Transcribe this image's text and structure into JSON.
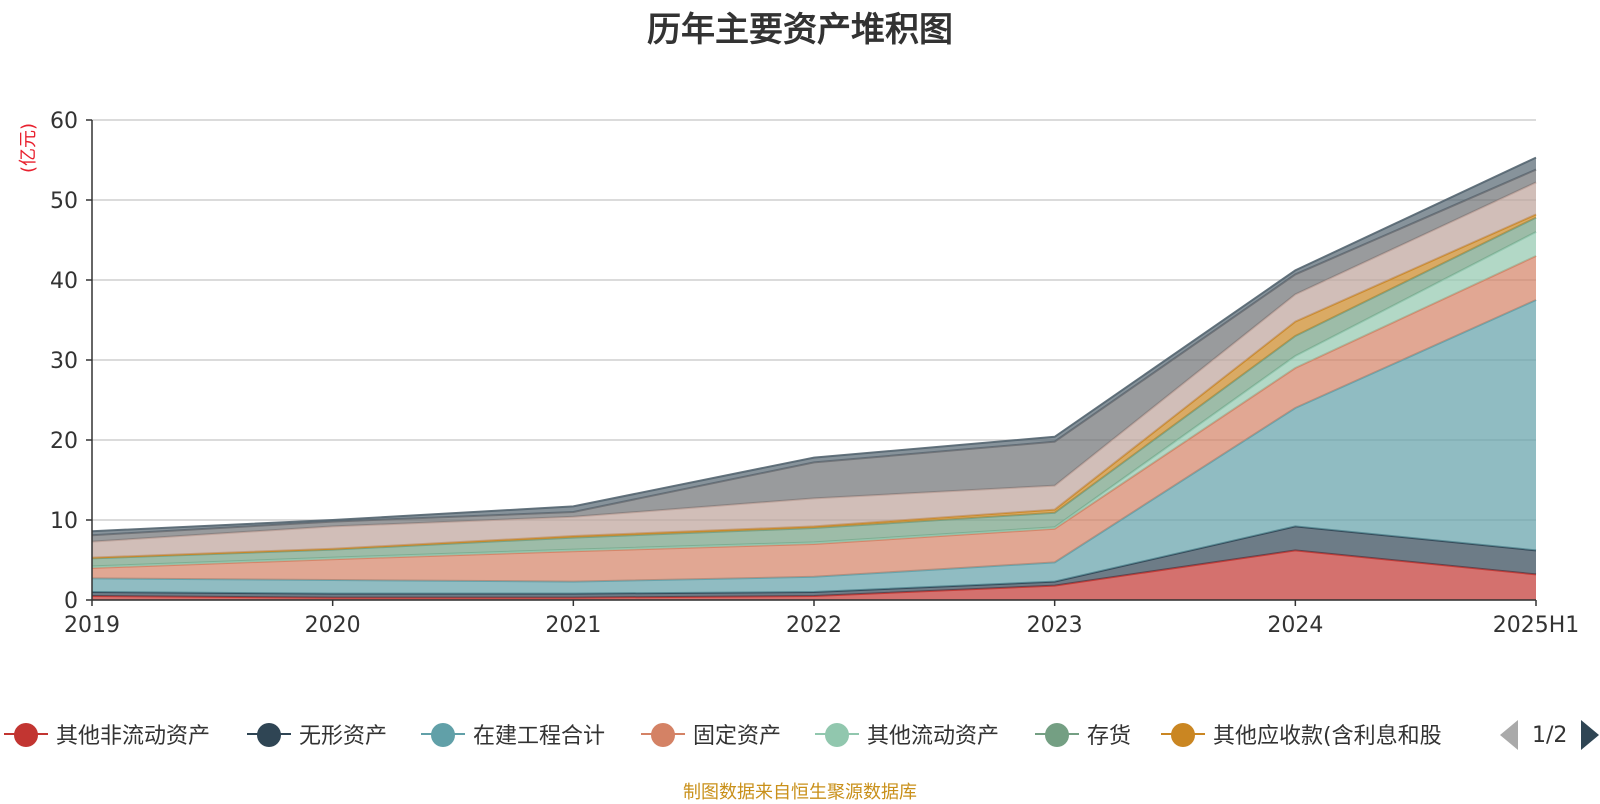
{
  "title": "历年主要资产堆积图",
  "unit_label": "(亿元)",
  "source_text": "制图数据来自恒生聚源数据库",
  "pager": {
    "text": "1/2"
  },
  "chart_data": {
    "type": "area",
    "stacked": true,
    "x": [
      "2019",
      "2020",
      "2021",
      "2022",
      "2023",
      "2024",
      "2025H1"
    ],
    "y_ticks": [
      0,
      10,
      20,
      30,
      40,
      50,
      60
    ],
    "ylim": [
      0,
      60
    ],
    "grid": true,
    "legend_position": "bottom",
    "series": [
      {
        "name": "其他非流动资产",
        "color": "#c23531",
        "values": [
          0.5,
          0.3,
          0.3,
          0.5,
          1.8,
          6.2,
          3.2
        ]
      },
      {
        "name": "无形资产",
        "color": "#2f4554",
        "values": [
          0.5,
          0.5,
          0.5,
          0.5,
          0.5,
          3.0,
          3.0
        ]
      },
      {
        "name": "在建工程合计",
        "color": "#61a0a8",
        "values": [
          1.7,
          1.7,
          1.5,
          1.9,
          2.4,
          14.8,
          31.3
        ]
      },
      {
        "name": "固定资产",
        "color": "#d48265",
        "values": [
          1.3,
          2.6,
          3.8,
          4.1,
          4.2,
          5.0,
          5.5
        ]
      },
      {
        "name": "其他流动资产",
        "color": "#91c7ae",
        "values": [
          0.2,
          0.2,
          0.2,
          0.2,
          0.2,
          1.5,
          3.0
        ]
      },
      {
        "name": "存货",
        "color": "#749f83",
        "values": [
          1.0,
          1.0,
          1.5,
          1.8,
          1.8,
          2.5,
          1.8
        ]
      },
      {
        "name": "其他应收款(含利息和股利)",
        "color": "#ca8622",
        "values": [
          0.1,
          0.1,
          0.2,
          0.2,
          0.4,
          1.8,
          0.4
        ]
      },
      {
        "name": "",
        "color": "#bda29a",
        "values": [
          2.0,
          2.8,
          2.4,
          3.5,
          3.0,
          3.4,
          4.0
        ]
      },
      {
        "name": "",
        "color": "#6e7074",
        "values": [
          0.8,
          0.6,
          0.6,
          4.5,
          5.5,
          2.5,
          1.6
        ]
      },
      {
        "name": "",
        "color": "#546570",
        "values": [
          0.5,
          0.2,
          0.7,
          0.6,
          0.6,
          0.5,
          1.5
        ]
      }
    ]
  },
  "legend_items": [
    {
      "label": "其他非流动资产",
      "color": "#c23531"
    },
    {
      "label": "无形资产",
      "color": "#2f4554"
    },
    {
      "label": "在建工程合计",
      "color": "#61a0a8"
    },
    {
      "label": "固定资产",
      "color": "#d48265"
    },
    {
      "label": "其他流动资产",
      "color": "#91c7ae"
    },
    {
      "label": "存货",
      "color": "#749f83"
    },
    {
      "label": "其他应收款(含利息和股",
      "color": "#ca8622"
    }
  ]
}
